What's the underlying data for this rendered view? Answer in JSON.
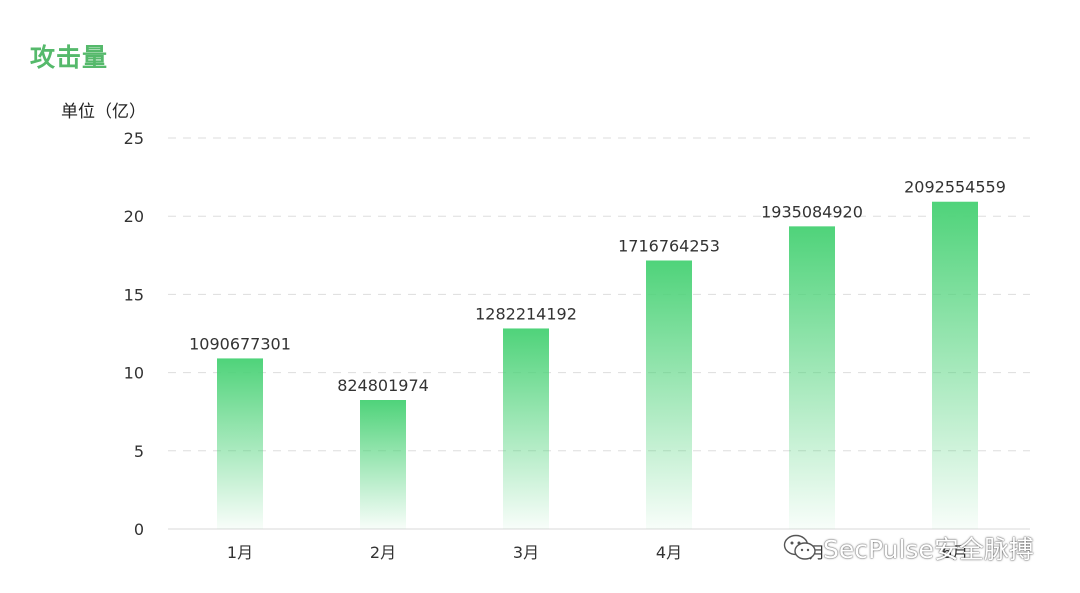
{
  "chart_data": {
    "type": "bar",
    "title": "攻击量",
    "ylabel": "单位（亿）",
    "xlabel": "",
    "categories": [
      "1月",
      "2月",
      "3月",
      "4月",
      "5月",
      "6月"
    ],
    "values": [
      10.90677301,
      8.24801974,
      12.82214192,
      17.16764253,
      19.3508492,
      20.92554559
    ],
    "data_labels": [
      "1090677301",
      "824801974",
      "1282214192",
      "1716764253",
      "1935084920",
      "2092554559"
    ],
    "ylim": [
      0,
      25
    ],
    "yticks": [
      0,
      5,
      10,
      15,
      20,
      25
    ],
    "grid": true,
    "bar_color": "#4fd37a"
  },
  "watermark": {
    "icon": "wechat-icon",
    "text": "SecPulse安全脉搏"
  }
}
